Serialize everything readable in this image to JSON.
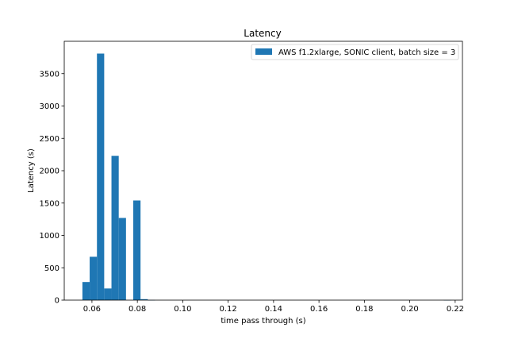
{
  "chart_data": {
    "type": "bar",
    "title": "Latency",
    "xlabel": "time pass through (s)",
    "ylabel": "Latency (s)",
    "xlim": [
      0.0478,
      0.2232
    ],
    "ylim": [
      0,
      4000
    ],
    "xticks": [
      0.06,
      0.08,
      0.1,
      0.12,
      0.14,
      0.16,
      0.18,
      0.2,
      0.22
    ],
    "xtick_labels": [
      "0.06",
      "0.08",
      "0.10",
      "0.12",
      "0.14",
      "0.16",
      "0.18",
      "0.20",
      "0.22"
    ],
    "yticks": [
      0,
      500,
      1000,
      1500,
      2000,
      2500,
      3000,
      3500
    ],
    "ytick_labels": [
      "0",
      "500",
      "1000",
      "1500",
      "2000",
      "2500",
      "3000",
      "3500"
    ],
    "bin_width": 0.0032,
    "bins": [
      {
        "x": 0.0558,
        "value": 280
      },
      {
        "x": 0.059,
        "value": 670
      },
      {
        "x": 0.0622,
        "value": 3810
      },
      {
        "x": 0.0654,
        "value": 180
      },
      {
        "x": 0.0686,
        "value": 2230
      },
      {
        "x": 0.0718,
        "value": 1270
      },
      {
        "x": 0.075,
        "value": 0
      },
      {
        "x": 0.0782,
        "value": 1540
      },
      {
        "x": 0.0814,
        "value": 15
      },
      {
        "x": 0.0846,
        "value": 2
      },
      {
        "x": 0.215,
        "value": 1
      }
    ],
    "series": [
      {
        "name": "AWS f1.2xlarge, SONIC client, batch size = 3",
        "color": "#1f77b4"
      }
    ],
    "legend_position": "top-right",
    "grid": false
  }
}
